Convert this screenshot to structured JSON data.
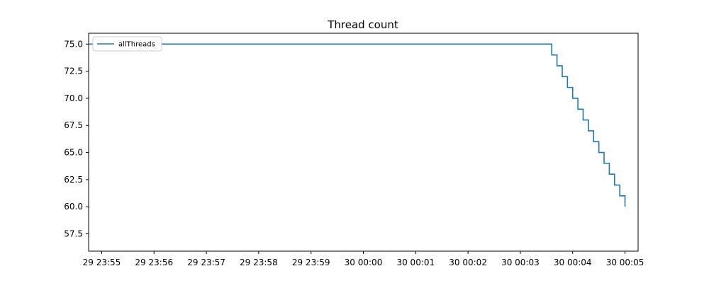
{
  "chart_data": {
    "type": "line",
    "title": "Thread count",
    "xlabel": "",
    "ylabel": "",
    "ylim": [
      55.9,
      76.0
    ],
    "xlim": [
      "29 23:54:45",
      "30 00:05:15"
    ],
    "x_ticks": [
      "29 23:55",
      "29 23:56",
      "29 23:57",
      "29 23:58",
      "29 23:59",
      "30 00:00",
      "30 00:01",
      "30 00:02",
      "30 00:03",
      "30 00:04",
      "30 00:05"
    ],
    "y_ticks": [
      "57.5",
      "60.0",
      "62.5",
      "65.0",
      "67.5",
      "70.0",
      "72.5",
      "75.0"
    ],
    "grid": false,
    "legend_position": "top-left",
    "line_style": "step",
    "series": [
      {
        "name": "allThreads",
        "color": "#1f77b4",
        "x": [
          "29 23:54:45",
          "30 00:03:30",
          "30 00:03:36",
          "30 00:03:42",
          "30 00:03:48",
          "30 00:03:54",
          "30 00:04:00",
          "30 00:04:06",
          "30 00:04:12",
          "30 00:04:18",
          "30 00:04:24",
          "30 00:04:30",
          "30 00:04:36",
          "30 00:04:42",
          "30 00:04:48",
          "30 00:04:54",
          "30 00:05:00"
        ],
        "y": [
          75,
          75,
          74,
          73,
          72,
          71,
          70,
          69,
          68,
          67,
          66,
          65,
          64,
          63,
          62,
          61,
          60
        ]
      }
    ],
    "legend": [
      {
        "label": "allThreads",
        "color": "#1f77b4"
      }
    ]
  }
}
